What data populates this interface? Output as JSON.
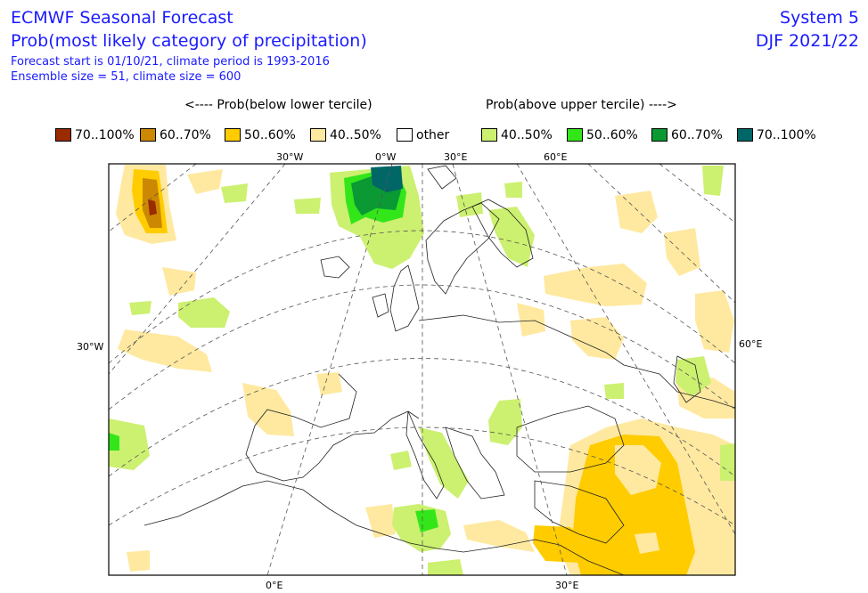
{
  "header": {
    "title": "ECMWF Seasonal Forecast",
    "subtitle": "Prob(most likely category of precipitation)",
    "forecast_line": "Forecast start is 01/10/21, climate period is 1993-2016",
    "ensemble_line": "Ensemble size = 51, climate size = 600",
    "system": "System 5",
    "period": "DJF 2021/22"
  },
  "legend": {
    "below_header": "<---- Prob(below lower tercile)",
    "above_header": "Prob(above upper tercile) ---->",
    "items": [
      {
        "label": "70..100%",
        "color": "#9a2a00"
      },
      {
        "label": "60..70%",
        "color": "#cc8800"
      },
      {
        "label": "50..60%",
        "color": "#ffcc00"
      },
      {
        "label": "40..50%",
        "color": "#ffe9a0"
      },
      {
        "label": "other",
        "color": "#ffffff"
      },
      {
        "label": "40..50%",
        "color": "#ccf070"
      },
      {
        "label": "50..60%",
        "color": "#33e61a"
      },
      {
        "label": "60..70%",
        "color": "#0a9933"
      },
      {
        "label": "70..100%",
        "color": "#006666"
      }
    ]
  },
  "map": {
    "top_labels": [
      "30°W",
      "0°W",
      "30°E",
      "60°E"
    ],
    "bottom_labels": [
      "0°E",
      "30°E"
    ],
    "left_label": "30°W",
    "right_label": "60°E"
  }
}
